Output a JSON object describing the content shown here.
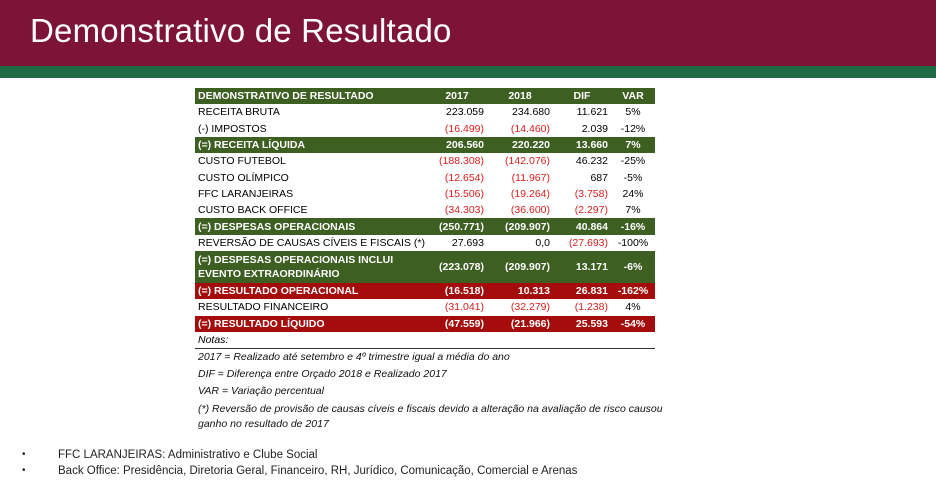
{
  "header": {
    "title": "Demonstrativo de Resultado"
  },
  "table": {
    "columns": [
      "DEMONSTRATIVO DE RESULTADO",
      "2017",
      "2018",
      "DIF",
      "VAR"
    ],
    "rows": [
      {
        "label": "RECEITA BRUTA",
        "v2017": "223.059",
        "v2018": "234.680",
        "dif": "11.621",
        "var": "5%"
      },
      {
        "label": "(-) IMPOSTOS",
        "v2017": "(16.499)",
        "v2018": "(14.460)",
        "dif": "2.039",
        "var": "-12%"
      },
      {
        "label": "(=) RECEITA LÍQUIDA",
        "v2017": "206.560",
        "v2018": "220.220",
        "dif": "13.660",
        "var": "7%"
      },
      {
        "label": "CUSTO FUTEBOL",
        "v2017": "(188.308)",
        "v2018": "(142.076)",
        "dif": "46.232",
        "var": "-25%"
      },
      {
        "label": "CUSTO OLÍMPICO",
        "v2017": "(12.654)",
        "v2018": "(11.967)",
        "dif": "687",
        "var": "-5%"
      },
      {
        "label": "FFC LARANJEIRAS",
        "v2017": "(15.506)",
        "v2018": "(19.264)",
        "dif": "(3.758)",
        "var": "24%"
      },
      {
        "label": "CUSTO BACK OFFICE",
        "v2017": "(34.303)",
        "v2018": "(36.600)",
        "dif": "(2.297)",
        "var": "7%"
      },
      {
        "label": "(=) DESPESAS OPERACIONAIS",
        "v2017": "(250.771)",
        "v2018": "(209.907)",
        "dif": "40.864",
        "var": "-16%"
      },
      {
        "label": "REVERSÃO DE CAUSAS CÍVEIS E FISCAIS (*)",
        "v2017": "27.693",
        "v2018": "0,0",
        "dif": "(27.693)",
        "var": "-100%"
      },
      {
        "label": "(=) DESPESAS OPERACIONAIS INCLUI EVENTO EXTRAORDINÁRIO",
        "v2017": "(223.078)",
        "v2018": "(209.907)",
        "dif": "13.171",
        "var": "-6%"
      },
      {
        "label": "(=) RESULTADO OPERACIONAL",
        "v2017": "(16.518)",
        "v2018": "10.313",
        "dif": "26.831",
        "var": "-162%"
      },
      {
        "label": "RESULTADO FINANCEIRO",
        "v2017": "(31.041)",
        "v2018": "(32.279)",
        "dif": "(1.238)",
        "var": "4%"
      },
      {
        "label": "(=) RESULTADO LÍQUIDO",
        "v2017": "(47.559)",
        "v2018": "(21.966)",
        "dif": "25.593",
        "var": "-54%"
      }
    ],
    "notes_label": "Notas:"
  },
  "notes": [
    "2017 = Realizado até setembro e 4º trimestre igual a média do ano",
    "DIF = Diferença entre Orçado 2018 e Realizado 2017",
    "VAR = Variação percentual",
    "(*) Reversão de provisão de causas cíveis e fiscais devido a alteração na avaliação de risco causou ganho no resultado de 2017"
  ],
  "bullets": [
    {
      "symbol": "•",
      "text": "FFC LARANJEIRAS: Administrativo e Clube Social"
    },
    {
      "symbol": "•",
      "text": "Back Office: Presidência, Diretoria Geral, Financeiro, RH, Jurídico, Comunicação, Comercial e Arenas"
    }
  ],
  "colors": {
    "header_bg": "#7d1437",
    "stripe": "#1d6a44",
    "green_row": "#3e5f22",
    "red_row": "#a50d0d",
    "negative_text": "#d81e1e"
  }
}
